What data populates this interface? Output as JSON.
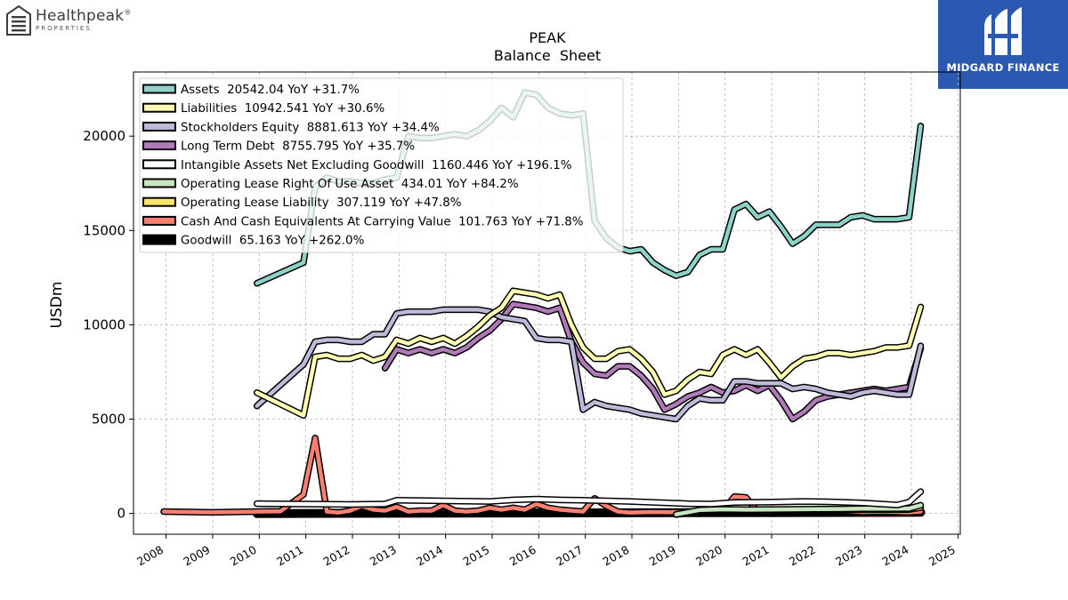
{
  "brand": {
    "left_name": "Healthpeak",
    "left_registered": "®",
    "left_sub": "PROPERTIES",
    "right_name": "MIDGARD FINANCE"
  },
  "colors": {
    "Assets": "#8dd3c7",
    "Liabilities": "#ffffb3",
    "Stockholders Equity": "#bebada",
    "Long Term Debt": "#b07ab8",
    "Intangible Assets Net Excluding Goodwill": "#ffffff",
    "Operating Lease Right Of Use Asset": "#c7e6c0",
    "Operating Lease Liability": "#fbe46a",
    "Cash And Cash Equivalents At Carrying Value": "#fb8072",
    "Goodwill": "#000000"
  },
  "chart_data": {
    "type": "line",
    "title": "PEAK",
    "subtitle": "Balance  Sheet",
    "ylabel": "USDm",
    "xlabel": "",
    "xlim": [
      2007.3,
      2025.05
    ],
    "ylim": [
      -1100,
      23400
    ],
    "xticks": [
      2008,
      2009,
      2010,
      2011,
      2012,
      2013,
      2014,
      2015,
      2016,
      2017,
      2018,
      2019,
      2020,
      2021,
      2022,
      2023,
      2024,
      2025
    ],
    "yticks": [
      0,
      5000,
      10000,
      15000,
      20000
    ],
    "grid": true,
    "legend_position": "top-left",
    "legend": [
      "Assets  20542.04 YoY +31.7%",
      "Liabilities  10942.541 YoY +30.6%",
      "Stockholders Equity  8881.613 YoY +34.4%",
      "Long Term Debt  8755.795 YoY +35.7%",
      "Intangible Assets Net Excluding Goodwill  1160.446 YoY +196.1%",
      "Operating Lease Right Of Use Asset  434.01 YoY +84.2%",
      "Operating Lease Liability  307.119 YoY +47.8%",
      "Cash And Cash Equivalents At Carrying Value  101.763 YoY +71.8%",
      "Goodwill  65.163 YoY +262.0%"
    ],
    "series": [
      {
        "name": "Assets",
        "x": [
          2009.95,
          2010.95,
          2011.2,
          2011.45,
          2011.7,
          2011.95,
          2012.2,
          2012.45,
          2012.7,
          2012.95,
          2013.2,
          2013.45,
          2013.7,
          2013.95,
          2014.2,
          2014.45,
          2014.7,
          2014.95,
          2015.2,
          2015.45,
          2015.7,
          2015.95,
          2016.2,
          2016.45,
          2016.7,
          2016.95,
          2017.2,
          2017.45,
          2017.7,
          2017.95,
          2018.2,
          2018.45,
          2018.7,
          2018.95,
          2019.2,
          2019.45,
          2019.7,
          2019.95,
          2020.2,
          2020.45,
          2020.7,
          2020.95,
          2021.2,
          2021.45,
          2021.7,
          2021.95,
          2022.2,
          2022.45,
          2022.7,
          2022.95,
          2023.2,
          2023.45,
          2023.7,
          2023.95,
          2024.2
        ],
        "y": [
          12200,
          13300,
          17300,
          17800,
          17600,
          17600,
          17500,
          17500,
          17700,
          17800,
          20000,
          19900,
          19900,
          20000,
          20100,
          20000,
          20300,
          20800,
          21500,
          21000,
          22300,
          22200,
          21500,
          21200,
          21100,
          21200,
          15500,
          14600,
          14100,
          13900,
          14000,
          13300,
          12900,
          12600,
          12800,
          13700,
          14000,
          14000,
          16100,
          16400,
          15700,
          16000,
          15200,
          14300,
          14700,
          15300,
          15300,
          15300,
          15700,
          15800,
          15600,
          15600,
          15600,
          15700,
          20542
        ]
      },
      {
        "name": "Liabilities",
        "x": [
          2009.95,
          2010.95,
          2011.2,
          2011.45,
          2011.7,
          2011.95,
          2012.2,
          2012.45,
          2012.7,
          2012.95,
          2013.2,
          2013.45,
          2013.7,
          2013.95,
          2014.2,
          2014.45,
          2014.7,
          2014.95,
          2015.2,
          2015.45,
          2015.7,
          2015.95,
          2016.2,
          2016.45,
          2016.7,
          2016.95,
          2017.2,
          2017.45,
          2017.7,
          2017.95,
          2018.2,
          2018.45,
          2018.7,
          2018.95,
          2019.2,
          2019.45,
          2019.7,
          2019.95,
          2020.2,
          2020.45,
          2020.7,
          2020.95,
          2021.2,
          2021.45,
          2021.7,
          2021.95,
          2022.2,
          2022.45,
          2022.7,
          2022.95,
          2023.2,
          2023.45,
          2023.7,
          2023.95,
          2024.2
        ],
        "y": [
          6400,
          5200,
          8300,
          8400,
          8200,
          8200,
          8400,
          8100,
          8300,
          9200,
          9000,
          9300,
          9100,
          9300,
          9000,
          9400,
          9900,
          10500,
          10900,
          11800,
          11700,
          11600,
          11400,
          11600,
          10000,
          8800,
          8200,
          8200,
          8600,
          8700,
          8200,
          7500,
          6300,
          6500,
          7100,
          7500,
          7400,
          8400,
          8700,
          8400,
          8700,
          8000,
          7200,
          7800,
          8200,
          8300,
          8500,
          8500,
          8400,
          8500,
          8600,
          8800,
          8800,
          8900,
          10943
        ]
      },
      {
        "name": "Stockholders Equity",
        "x": [
          2009.95,
          2010.95,
          2011.2,
          2011.45,
          2011.7,
          2011.95,
          2012.2,
          2012.45,
          2012.7,
          2012.95,
          2013.2,
          2013.45,
          2013.7,
          2013.95,
          2014.2,
          2014.45,
          2014.7,
          2014.95,
          2015.2,
          2015.45,
          2015.7,
          2015.95,
          2016.2,
          2016.45,
          2016.7,
          2016.95,
          2017.2,
          2017.45,
          2017.7,
          2017.95,
          2018.2,
          2018.45,
          2018.7,
          2018.95,
          2019.2,
          2019.45,
          2019.7,
          2019.95,
          2020.2,
          2020.45,
          2020.7,
          2020.95,
          2021.2,
          2021.45,
          2021.7,
          2021.95,
          2022.2,
          2022.45,
          2022.7,
          2022.95,
          2023.2,
          2023.45,
          2023.7,
          2023.95,
          2024.2
        ],
        "y": [
          5700,
          7900,
          9100,
          9200,
          9200,
          9100,
          9100,
          9500,
          9500,
          10600,
          10700,
          10700,
          10700,
          10800,
          10800,
          10800,
          10800,
          10700,
          10400,
          10300,
          10200,
          9300,
          9200,
          9200,
          9100,
          5500,
          5900,
          5700,
          5600,
          5500,
          5300,
          5200,
          5100,
          5000,
          5700,
          6100,
          6000,
          6000,
          7000,
          7000,
          6900,
          6900,
          6900,
          6600,
          6700,
          6600,
          6400,
          6300,
          6200,
          6400,
          6500,
          6400,
          6300,
          6300,
          8882
        ]
      },
      {
        "name": "Long Term Debt",
        "x": [
          2012.7,
          2012.95,
          2013.2,
          2013.45,
          2013.7,
          2013.95,
          2014.2,
          2014.45,
          2014.7,
          2014.95,
          2015.2,
          2015.45,
          2015.7,
          2015.95,
          2016.2,
          2016.45,
          2016.7,
          2016.95,
          2017.2,
          2017.45,
          2017.7,
          2017.95,
          2018.2,
          2018.45,
          2018.7,
          2018.95,
          2019.2,
          2019.45,
          2019.7,
          2019.95,
          2020.2,
          2020.45,
          2020.7,
          2020.95,
          2021.2,
          2021.45,
          2021.7,
          2021.95,
          2022.2,
          2022.45,
          2022.7,
          2022.95,
          2023.2,
          2023.45,
          2023.7,
          2023.95,
          2024.2
        ],
        "y": [
          7700,
          8700,
          8500,
          8700,
          8500,
          8700,
          8500,
          8800,
          9300,
          9700,
          10300,
          11100,
          11000,
          10900,
          10700,
          10900,
          9100,
          8000,
          7400,
          7300,
          7800,
          7800,
          7300,
          6600,
          5500,
          5800,
          6200,
          6400,
          6700,
          6400,
          6500,
          6800,
          6500,
          6800,
          6000,
          5000,
          5400,
          6000,
          6200,
          6300,
          6400,
          6500,
          6600,
          6500,
          6600,
          6700,
          8756
        ]
      },
      {
        "name": "Intangible Assets Net Excluding Goodwill",
        "x": [
          2009.95,
          2011.95,
          2012.7,
          2012.95,
          2014.95,
          2015.45,
          2015.95,
          2016.45,
          2016.95,
          2017.95,
          2018.7,
          2019.2,
          2019.7,
          2020.2,
          2020.95,
          2021.7,
          2022.2,
          2022.95,
          2023.7,
          2023.95,
          2024.2
        ],
        "y": [
          520,
          480,
          500,
          700,
          640,
          720,
          760,
          720,
          700,
          640,
          570,
          520,
          500,
          580,
          600,
          640,
          620,
          560,
          450,
          600,
          1160
        ]
      },
      {
        "name": "Operating Lease Right Of Use Asset",
        "x": [
          2018.95,
          2019.45,
          2019.95,
          2020.45,
          2020.95,
          2021.45,
          2021.95,
          2022.45,
          2022.95,
          2023.45,
          2023.95,
          2024.2
        ],
        "y": [
          -50,
          180,
          220,
          200,
          210,
          220,
          230,
          240,
          250,
          255,
          260,
          434
        ]
      },
      {
        "name": "Operating Lease Liability",
        "x": [
          2018.95,
          2019.45,
          2019.95,
          2020.45,
          2020.95,
          2021.45,
          2021.95,
          2022.45,
          2022.95,
          2023.45,
          2023.95,
          2024.2
        ],
        "y": [
          -60,
          150,
          170,
          160,
          170,
          180,
          190,
          195,
          200,
          205,
          210,
          307
        ]
      },
      {
        "name": "Cash And Cash Equivalents At Carrying Value",
        "x": [
          2007.95,
          2008.95,
          2009.95,
          2010.45,
          2010.95,
          2011.2,
          2011.45,
          2011.7,
          2011.95,
          2012.2,
          2012.45,
          2012.7,
          2012.95,
          2013.2,
          2013.45,
          2013.7,
          2013.95,
          2014.2,
          2014.45,
          2014.7,
          2014.95,
          2015.2,
          2015.45,
          2015.7,
          2015.95,
          2016.2,
          2016.45,
          2016.7,
          2016.95,
          2017.2,
          2017.45,
          2017.7,
          2017.95,
          2018.45,
          2018.95,
          2019.45,
          2019.95,
          2020.2,
          2020.45,
          2020.7,
          2020.95,
          2021.45,
          2021.95,
          2022.45,
          2022.95,
          2023.45,
          2023.95,
          2024.2
        ],
        "y": [
          100,
          60,
          100,
          110,
          1000,
          4000,
          100,
          50,
          150,
          400,
          200,
          150,
          350,
          100,
          150,
          150,
          450,
          150,
          100,
          150,
          300,
          200,
          300,
          200,
          500,
          300,
          200,
          150,
          100,
          800,
          400,
          100,
          50,
          80,
          70,
          90,
          150,
          900,
          850,
          100,
          100,
          150,
          200,
          150,
          80,
          100,
          60,
          102
        ]
      },
      {
        "name": "Goodwill",
        "x": [
          2009.95,
          2024.2
        ],
        "y": [
          0,
          65
        ]
      }
    ]
  }
}
